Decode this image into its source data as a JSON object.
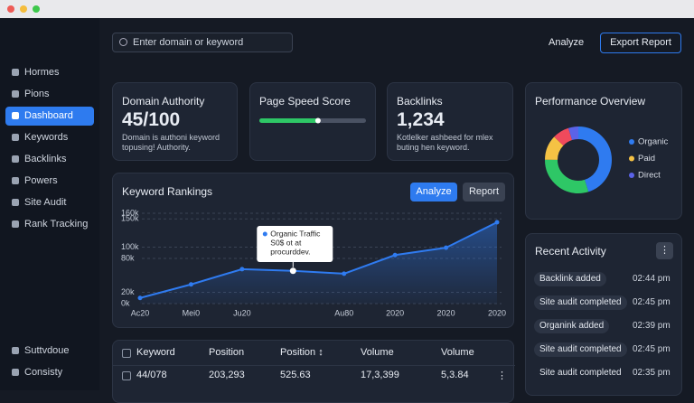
{
  "window": {
    "type": "browser"
  },
  "sidebar": {
    "items": [
      "Hormes",
      "Pions",
      "Dashboard",
      "Keywords",
      "Backlinks",
      "Powers",
      "Site Audit",
      "Rank Tracking"
    ],
    "active": 2,
    "footer": [
      "Suttvdoue",
      "Consisty"
    ]
  },
  "topbar": {
    "search_placeholder": "Enter domain or keyword",
    "analyze": "Analyze",
    "export": "Export Report"
  },
  "cards": [
    {
      "title": "Domain Authority",
      "value": "45/100",
      "description": [
        "Domain is authoni keyword",
        "topusing! Authority."
      ]
    },
    {
      "title": "Page Speed Score",
      "progress": 55,
      "progress_max": 100
    },
    {
      "title": "Backlinks",
      "value": "1,234",
      "description": [
        "Kotlelker ashbeed for mlex",
        "buting hen keyword."
      ]
    }
  ],
  "keyword_rankings": {
    "type": "line",
    "title": "Keyword Rankings",
    "buttons": [
      "Analyze",
      "Report"
    ],
    "categories": [
      "Ac20",
      "Mei0",
      "Ju20",
      null,
      "Au80",
      "2020",
      "2020",
      "2020"
    ],
    "values": [
      10000,
      34000,
      61000,
      58000,
      53000,
      86000,
      99000,
      144000
    ],
    "color": "#2f7bf0",
    "ylim": [
      0,
      160000
    ],
    "yticks": [
      {
        "value": 0,
        "label": "0k"
      },
      {
        "value": 20000,
        "label": "20k"
      },
      {
        "value": 80000,
        "label": "80k"
      },
      {
        "value": 100000,
        "label": "100k"
      },
      {
        "value": 150000,
        "label": "150k"
      },
      {
        "value": 160000,
        "label": "160k"
      }
    ],
    "grid": true,
    "tooltip": {
      "point": 3,
      "lines": [
        "Organic Traffic",
        "S0$ ot at",
        "procurddev."
      ]
    }
  },
  "performance_overview": {
    "type": "pie",
    "title": "Performance Overview",
    "segments": [
      {
        "name": "Organic",
        "value": 45,
        "color": "#2f7bf0"
      },
      {
        "value": 30,
        "color": "#2ec766"
      },
      {
        "name": "Paid",
        "value": 12,
        "color": "#f5c244"
      },
      {
        "value": 8,
        "color": "#ef4a5c"
      },
      {
        "name": "Direct",
        "value": 5,
        "color": "#5b63e8"
      }
    ]
  },
  "recent_activity": {
    "title": "Recent Activity",
    "items": [
      {
        "label": "Backlink added",
        "time": "02:44 pm"
      },
      {
        "label": "Site audit completed",
        "time": "02:45 pm"
      },
      {
        "label": "Organink added",
        "time": "02:39 pm"
      },
      {
        "label": "Site audit completed",
        "time": "02:45 pm"
      },
      {
        "label": "Site audit completed",
        "time": "02:35 pm"
      }
    ]
  },
  "table": {
    "header": [
      "Keyword",
      "Position",
      "Position ↕",
      "Volume",
      "Volume"
    ],
    "rows": [
      [
        "44/078",
        "203,293",
        "525.63",
        "17,3,399",
        "5,3.84"
      ]
    ]
  }
}
